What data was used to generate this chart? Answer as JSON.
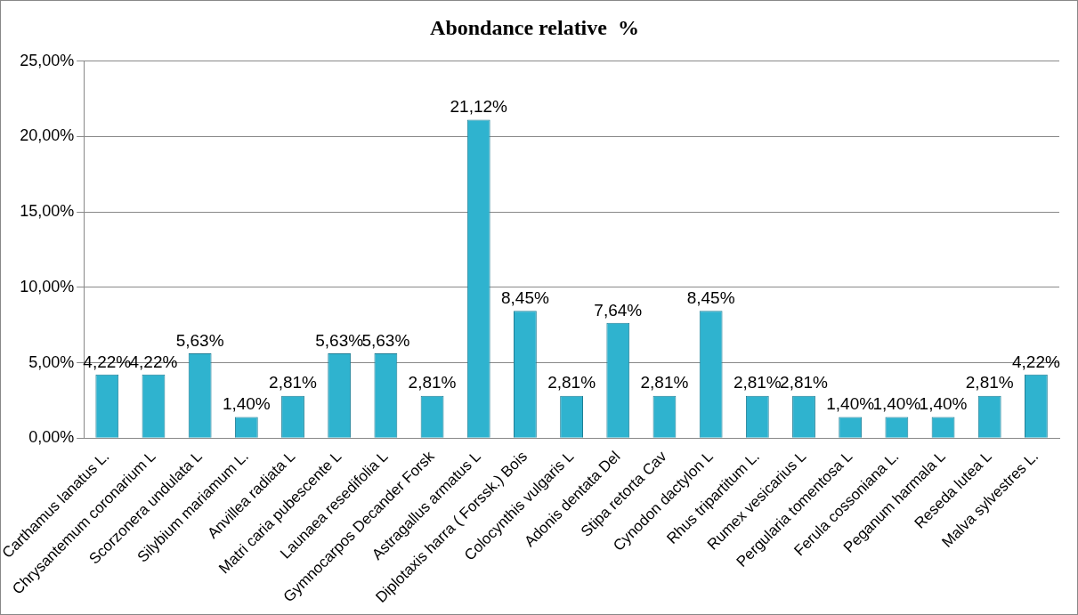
{
  "chart_data": {
    "type": "bar",
    "title": "Abondance relative  %",
    "categories": [
      "Carthamus lanatus L.",
      "Chrysantemum coronarium L",
      "Scorzonera undulata L",
      "Silybium mariamum L.",
      "Anvillea radiata L",
      "Matri caria pubescente L",
      "Launaea resedifolia L",
      "Gymnocarpos Decander Forsk",
      "Astragallus armatus L",
      "Diplotaxis harra ( Forssk.) Bois",
      "Colocynthis vulgaris L",
      "Adonis dentata Del",
      "Stipa retorta Cav",
      "Cynodon dactylon L",
      "Rhus tripartitum L.",
      "Rumex vesicarius L",
      "Pergularia tomentosa L",
      "Ferula cossoniana L.",
      "Peganum harmala L",
      "Reseda lutea L",
      "Malva sylvestres L."
    ],
    "values": [
      4.22,
      4.22,
      5.63,
      1.4,
      2.81,
      5.63,
      5.63,
      2.81,
      21.12,
      8.45,
      2.81,
      7.64,
      2.81,
      8.45,
      2.81,
      2.81,
      1.4,
      1.4,
      1.4,
      2.81,
      4.22
    ],
    "value_labels": [
      "4,22%",
      "4,22%",
      "5,63%",
      "1,40%",
      "2,81%",
      "5,63%",
      "5,63%",
      "2,81%",
      "21,12%",
      "8,45%",
      "2,81%",
      "7,64%",
      "2,81%",
      "8,45%",
      "2,81%",
      "2,81%",
      "1,40%",
      "1,40%",
      "1,40%",
      "2,81%",
      "4,22%"
    ],
    "color": "#2fb3cf",
    "ylim": [
      0,
      25
    ],
    "yticks": [
      {
        "value": 0,
        "label": "0,00%"
      },
      {
        "value": 5,
        "label": "5,00%"
      },
      {
        "value": 10,
        "label": "10,00%"
      },
      {
        "value": 15,
        "label": "15,00%"
      },
      {
        "value": 20,
        "label": "20,00%"
      },
      {
        "value": 25,
        "label": "25,00%"
      }
    ],
    "grid": "y"
  }
}
